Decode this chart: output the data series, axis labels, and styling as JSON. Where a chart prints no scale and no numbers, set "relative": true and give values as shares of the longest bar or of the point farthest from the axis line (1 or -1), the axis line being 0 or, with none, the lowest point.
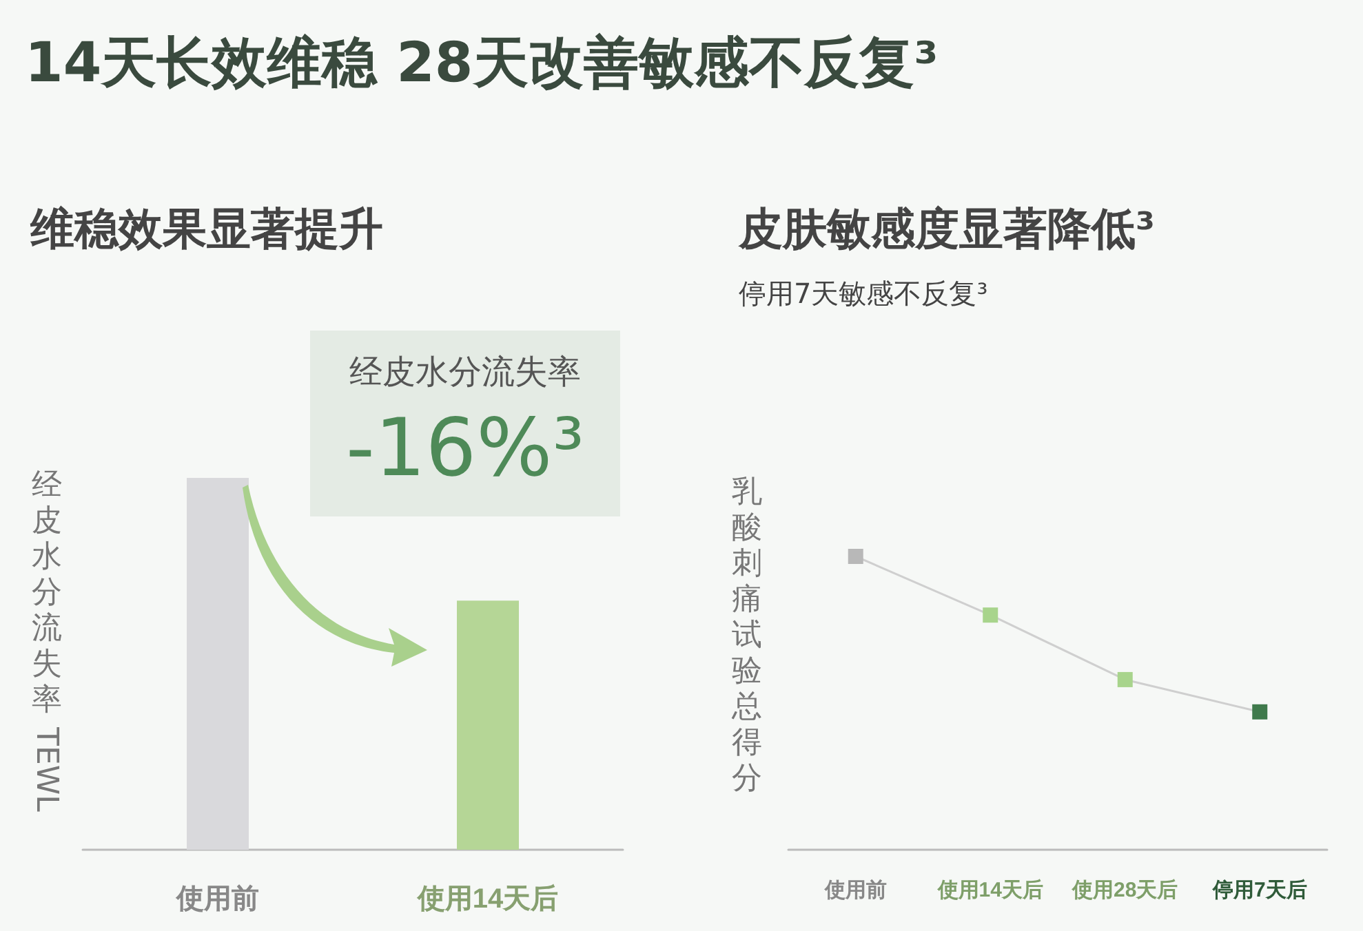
{
  "chart_data": [
    {
      "type": "bar",
      "title": "14天长效维稳 28天改善敏感不反复³",
      "subtitle": "维稳效果显著提升",
      "ylabel": "经皮水分流失率 TEWL",
      "annotations": [
        "经皮水分流失率",
        "-16%³"
      ],
      "categories": [
        "使用前",
        "使用14天后"
      ],
      "relative": true,
      "series": [
        {
          "values": [
            1,
            0.67
          ],
          "colors": [
            "#d9d9dc",
            "#b5d696"
          ]
        }
      ]
    },
    {
      "type": "line",
      "title": "皮肤敏感度显著降低³",
      "subtitle": "停用7天敏感不反复³",
      "ylabel": "乳酸刺痛试验总得分",
      "categories": [
        "使用前",
        "使用14天后",
        "使用28天后",
        "停用7天后"
      ],
      "relative": true,
      "marker": "square",
      "series": [
        {
          "color": "#cfcfcf",
          "values": [
            1,
            0.8,
            0.58,
            0.47
          ],
          "colors": [
            "#b8b8b8",
            "#a8d48c",
            "#a8d48c",
            "#3f7a4c"
          ]
        }
      ]
    }
  ]
}
